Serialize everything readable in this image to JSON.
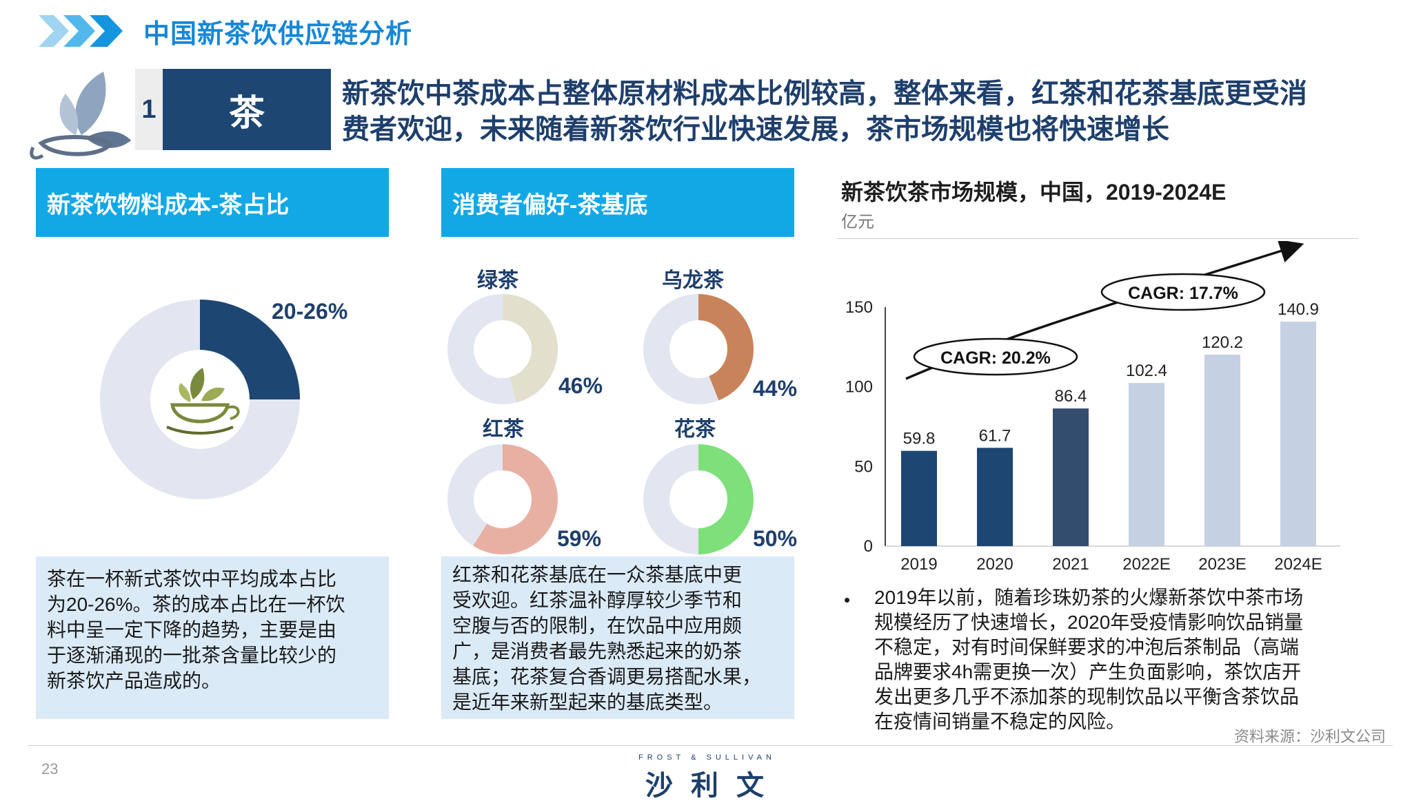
{
  "header": {
    "title": "中国新茶饮供应链分析",
    "section_number": "1",
    "section_label": "茶",
    "headline_line1": "新茶饮中茶成本占整体原材料成本比例较高，整体来看，红茶和花茶基底更受消",
    "headline_line2": "费者欢迎，未来随着新茶饮行业快速发展，茶市场规模也将快速增长"
  },
  "panel1": {
    "title": "新茶饮物料成本-茶占比",
    "pct_label": "20-26%",
    "text_lines": [
      "茶在一杯新式茶饮中平均成本占比",
      "为20-26%。茶的成本占比在一杯饮",
      "料中呈一定下降的趋势，主要是由",
      "于逐渐涌现的一批茶含量比较少的",
      "新茶饮产品造成的。"
    ]
  },
  "panel2": {
    "title": "消费者偏好-茶基底",
    "text_lines": [
      "红茶和花茶基底在一众茶基底中更",
      "受欢迎。红茶温补醇厚较少季节和",
      "空腹与否的限制，在饮品中应用颇",
      "广，是消费者最先熟悉起来的奶茶",
      "基底；花茶复合香调更易搭配水果，",
      "是近年来新型起来的基底类型。"
    ]
  },
  "panel3": {
    "title": "新茶饮茶市场规模，中国，2019-2024E",
    "unit": "亿元",
    "bullet_lines": [
      "2019年以前，随着珍珠奶茶的火爆新茶饮中茶市场",
      "规模经历了快速增长，2020年受疫情影响饮品销量",
      "不稳定，对有时间保鲜要求的冲泡后茶制品（高端",
      "品牌要求4h需更换一次）产生负面影响，茶饮店开",
      "发出更多几乎不添加茶的现制饮品以平衡含茶饮品",
      "在疫情间销量不稳定的风险。"
    ],
    "source": "资料来源：沙利文公司"
  },
  "footer": {
    "page_number": "23",
    "logo_en": "FROST & SULLIVAN",
    "logo_cn": "沙利文"
  },
  "chart_data": [
    {
      "type": "pie",
      "title": "新茶饮物料成本-茶占比",
      "slices": [
        {
          "label": "20-26%",
          "value": 0.25
        }
      ],
      "colors": {
        "filled": "#1e4672",
        "rest": "#e3e6f0"
      }
    },
    {
      "type": "pie",
      "title": "消费者偏好-茶基底",
      "items": [
        {
          "name": "绿茶",
          "value": 0.46,
          "label": "46%",
          "color": "#e2dfcc"
        },
        {
          "name": "乌龙茶",
          "value": 0.44,
          "label": "44%",
          "color": "#c9835a"
        },
        {
          "name": "红茶",
          "value": 0.59,
          "label": "59%",
          "color": "#e8b0a3"
        },
        {
          "name": "花茶",
          "value": 0.5,
          "label": "50%",
          "color": "#7ee07a"
        }
      ],
      "track_color": "#e3e6f0"
    },
    {
      "type": "bar",
      "title": "新茶饮茶市场规模，中国，2019-2024E",
      "ylabel": "亿元",
      "categories": [
        "2019",
        "2020",
        "2021",
        "2022E",
        "2023E",
        "2024E"
      ],
      "values": [
        59.8,
        61.7,
        86.4,
        102.4,
        120.2,
        140.9
      ],
      "value_labels": [
        "59.8",
        "61.7",
        "86.4",
        "102.4",
        "120.2",
        "140.9"
      ],
      "bar_colors": [
        "#1e4672",
        "#1e4672",
        "#334d6e",
        "#c5d0e3",
        "#c5d0e3",
        "#c5d0e3"
      ],
      "ylim": [
        0,
        150
      ],
      "yticks": [
        "0",
        "50",
        "100",
        "150"
      ],
      "annotations": [
        "CAGR: 20.2%",
        "CAGR: 17.7%"
      ]
    }
  ]
}
